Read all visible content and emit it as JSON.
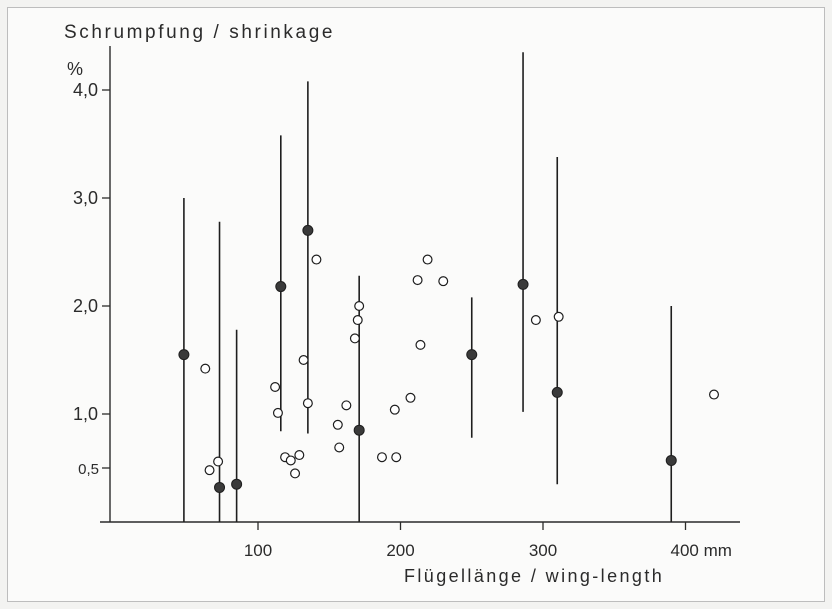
{
  "chart_data": {
    "type": "scatter",
    "title": "Schrumpfung / shrinkage",
    "xlabel": "Flügellänge / wing-length",
    "ylabel": "%",
    "xlim": [
      0,
      440
    ],
    "ylim": [
      0,
      4.4
    ],
    "x_ticks": [
      {
        "value": 100,
        "label": "100"
      },
      {
        "value": 200,
        "label": "200"
      },
      {
        "value": 300,
        "label": "300"
      },
      {
        "value": 400,
        "label": "400 mm"
      }
    ],
    "y_ticks": [
      {
        "value": 0.5,
        "label": "0,5"
      },
      {
        "value": 1.0,
        "label": "1,0"
      },
      {
        "value": 2.0,
        "label": "2,0"
      },
      {
        "value": 3.0,
        "label": "3,0"
      },
      {
        "value": 4.0,
        "label": "4,0"
      }
    ],
    "grid": false,
    "legend": "none",
    "colors": {
      "filled": "#3a3a3a",
      "open_fill": "#ffffff",
      "stroke": "#1e1e1e",
      "axis": "#2b2b2b"
    },
    "series": [
      {
        "marker": "filled-circle-with-range",
        "points": [
          {
            "x": 48,
            "y": 1.55,
            "low": 0.0,
            "high": 3.0
          },
          {
            "x": 73,
            "y": 0.32,
            "low": 0.0,
            "high": 2.78
          },
          {
            "x": 85,
            "y": 0.35,
            "low": 0.0,
            "high": 1.78
          },
          {
            "x": 116,
            "y": 2.18,
            "low": 0.84,
            "high": 3.58
          },
          {
            "x": 135,
            "y": 2.7,
            "low": 0.82,
            "high": 4.08
          },
          {
            "x": 171,
            "y": 0.85,
            "low": 0.0,
            "high": 2.28
          },
          {
            "x": 250,
            "y": 1.55,
            "low": 0.78,
            "high": 2.08
          },
          {
            "x": 286,
            "y": 2.2,
            "low": 1.02,
            "high": 4.35
          },
          {
            "x": 310,
            "y": 1.2,
            "low": 0.35,
            "high": 3.38
          },
          {
            "x": 390,
            "y": 0.57,
            "low": 0.0,
            "high": 2.0
          }
        ]
      },
      {
        "marker": "open-circle",
        "points": [
          {
            "x": 63,
            "y": 1.42
          },
          {
            "x": 66,
            "y": 0.48
          },
          {
            "x": 72,
            "y": 0.56
          },
          {
            "x": 112,
            "y": 1.25
          },
          {
            "x": 114,
            "y": 1.01
          },
          {
            "x": 119,
            "y": 0.6
          },
          {
            "x": 123,
            "y": 0.57
          },
          {
            "x": 126,
            "y": 0.45
          },
          {
            "x": 129,
            "y": 0.62
          },
          {
            "x": 132,
            "y": 1.5
          },
          {
            "x": 135,
            "y": 1.1
          },
          {
            "x": 141,
            "y": 2.43
          },
          {
            "x": 156,
            "y": 0.9
          },
          {
            "x": 157,
            "y": 0.69
          },
          {
            "x": 162,
            "y": 1.08
          },
          {
            "x": 168,
            "y": 1.7
          },
          {
            "x": 170,
            "y": 1.87
          },
          {
            "x": 171,
            "y": 2.0
          },
          {
            "x": 187,
            "y": 0.6
          },
          {
            "x": 196,
            "y": 1.04
          },
          {
            "x": 197,
            "y": 0.6
          },
          {
            "x": 207,
            "y": 1.15
          },
          {
            "x": 212,
            "y": 2.24
          },
          {
            "x": 214,
            "y": 1.64
          },
          {
            "x": 219,
            "y": 2.43
          },
          {
            "x": 230,
            "y": 2.23
          },
          {
            "x": 295,
            "y": 1.87
          },
          {
            "x": 311,
            "y": 1.9
          },
          {
            "x": 420,
            "y": 1.18
          }
        ]
      }
    ]
  }
}
